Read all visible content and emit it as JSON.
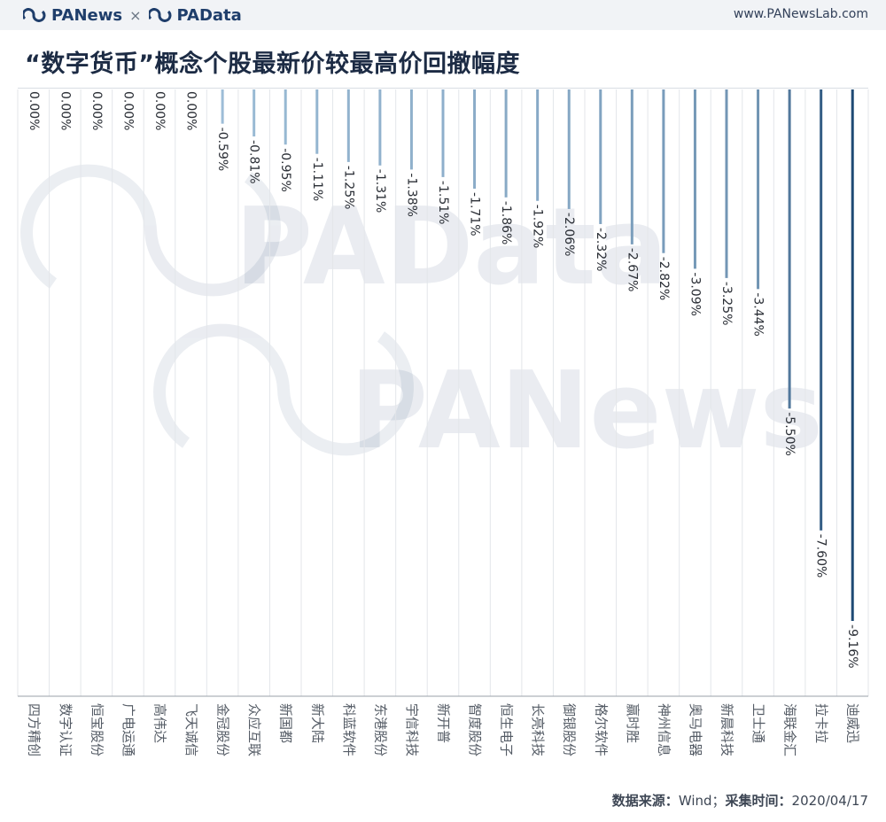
{
  "header": {
    "brand_left": "PANews",
    "brand_sep": "×",
    "brand_right": "PAData",
    "site": "www.PANewsLab.com"
  },
  "title": "“数字货币”概念个股最新价较最高价回撤幅度",
  "footer": {
    "source_label": "数据来源：",
    "source_value": "Wind；",
    "time_label": "采集时间：",
    "time_value": "2020/04/17"
  },
  "watermark": {
    "line1": "PAData",
    "line2": "PANews"
  },
  "colors": {
    "light": "#a9c8e0",
    "dark": "#1f4a74",
    "grid": "#e3e6ea",
    "axis": "#9aa1aa"
  },
  "chart_data": {
    "type": "bar",
    "orientation": "vertical-downward",
    "categories": [
      "四方精创",
      "数字认证",
      "恒宝股份",
      "广电运通",
      "高伟达",
      "飞天诚信",
      "金冠股份",
      "众应互联",
      "新国都",
      "新大陆",
      "科蓝软件",
      "东港股份",
      "宇信科技",
      "新开普",
      "智度股份",
      "恒生电子",
      "长亮科技",
      "御银股份",
      "格尔软件",
      "赢时胜",
      "神州信息",
      "奥马电器",
      "新晨科技",
      "卫士通",
      "海联金汇",
      "拉卡拉",
      "迪威迅"
    ],
    "values": [
      0.0,
      0.0,
      0.0,
      0.0,
      0.0,
      0.0,
      -0.59,
      -0.81,
      -0.95,
      -1.11,
      -1.25,
      -1.31,
      -1.38,
      -1.51,
      -1.71,
      -1.86,
      -1.92,
      -2.06,
      -2.32,
      -2.67,
      -2.82,
      -3.09,
      -3.25,
      -3.44,
      -5.5,
      -7.6,
      -9.16
    ],
    "labels": [
      "0.00%",
      "0.00%",
      "0.00%",
      "0.00%",
      "0.00%",
      "0.00%",
      "-0.59%",
      "-0.81%",
      "-0.95%",
      "-1.11%",
      "-1.25%",
      "-1.31%",
      "-1.38%",
      "-1.51%",
      "-1.71%",
      "-1.86%",
      "-1.92%",
      "-2.06%",
      "-2.32%",
      "-2.67%",
      "-2.82%",
      "-3.09%",
      "-3.25%",
      "-3.44%",
      "-5.50%",
      "-7.60%",
      "-9.16%"
    ],
    "unit": "%",
    "ylim": [
      -9.16,
      0
    ],
    "grid": true
  }
}
